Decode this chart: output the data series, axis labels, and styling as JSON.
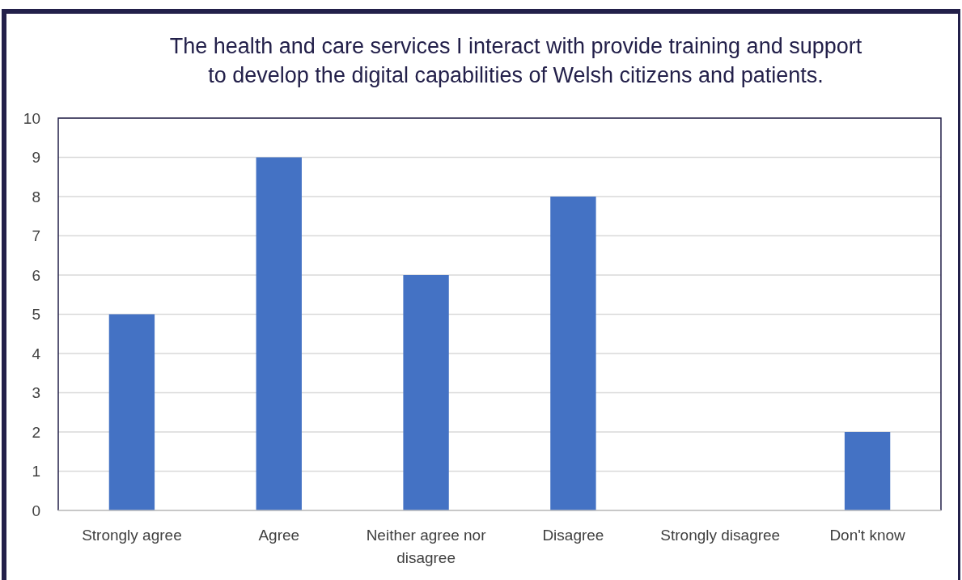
{
  "chart_data": {
    "type": "bar",
    "title": "The health and care services I interact with provide training and support to develop the digital capabilities of Welsh citizens and patients.",
    "categories": [
      "Strongly agree",
      "Agree",
      "Neither agree nor disagree",
      "Disagree",
      "Strongly disagree",
      "Don't know"
    ],
    "values": [
      5,
      9,
      6,
      8,
      0,
      2
    ],
    "color": "#4472c4",
    "ylim": [
      0,
      10
    ],
    "yticks": [
      0,
      1,
      2,
      3,
      4,
      5,
      6,
      7,
      8,
      9,
      10
    ],
    "grid": "y"
  }
}
